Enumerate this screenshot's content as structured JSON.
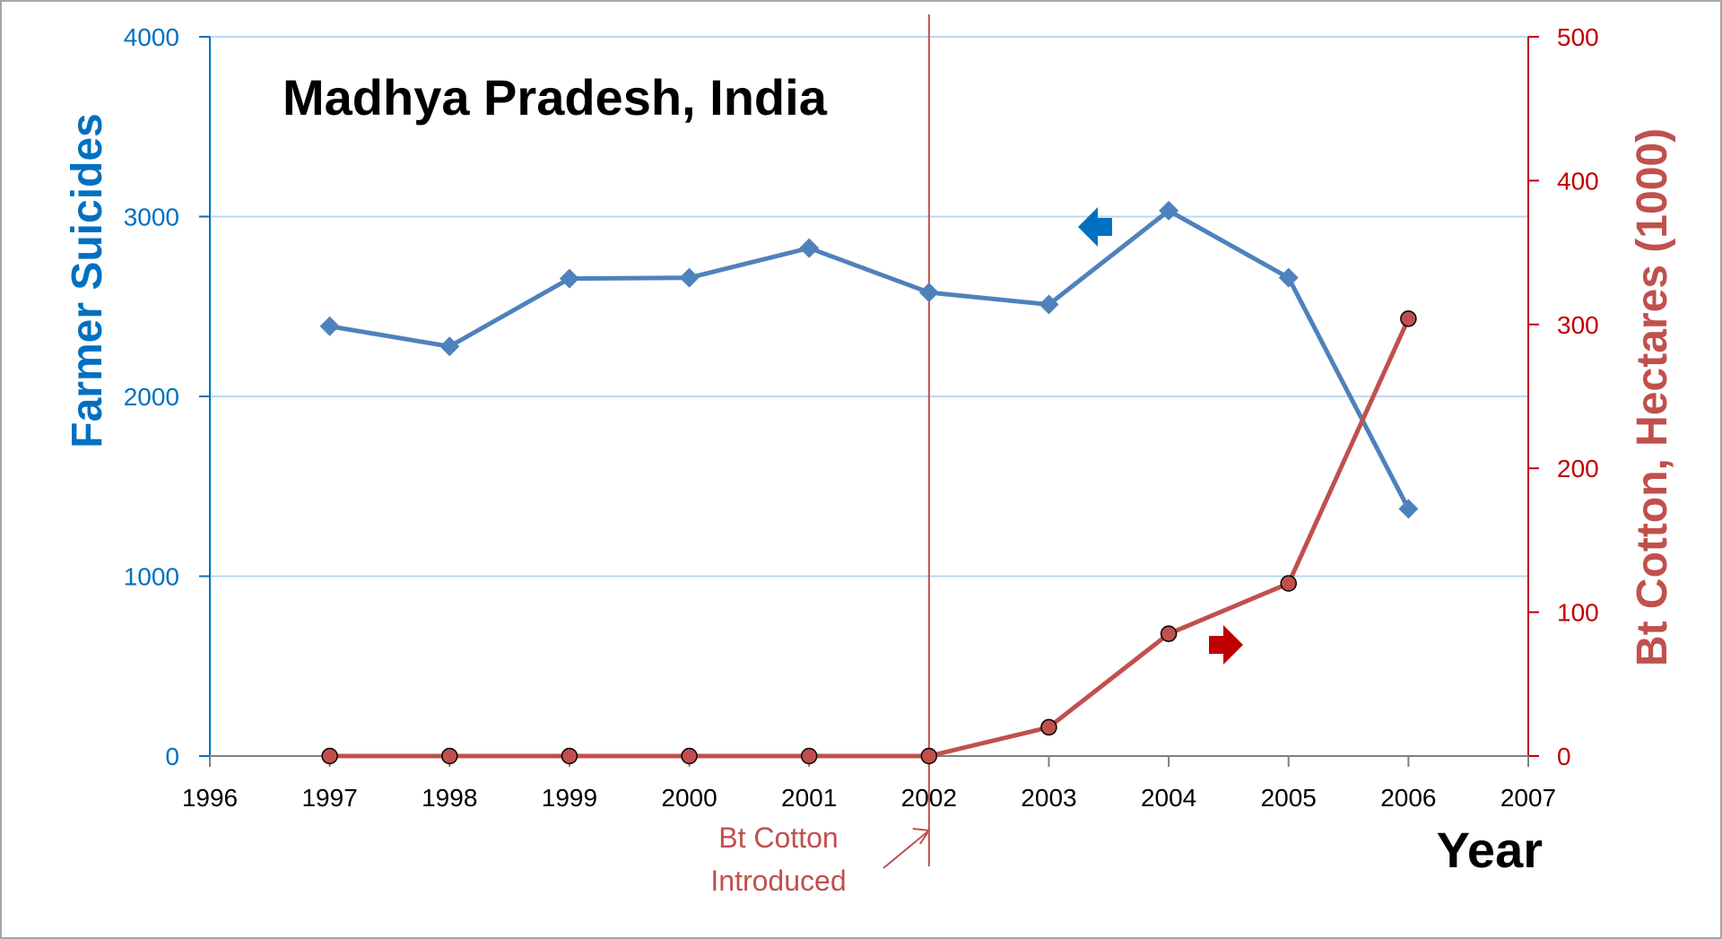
{
  "chart_data": {
    "type": "line",
    "title": "Madhya Pradesh, India",
    "xlabel": "Year",
    "ylabel_left": "Farmer Suicides",
    "ylabel_right": "Bt Cotton, Hectares (1000)",
    "xlim": [
      1996,
      2007
    ],
    "x_ticks": [
      "1996",
      "1997",
      "1998",
      "1999",
      "2000",
      "2001",
      "2002",
      "2003",
      "2004",
      "2005",
      "2006",
      "2007"
    ],
    "ylim_left": [
      0,
      4000
    ],
    "y_ticks_left": [
      "0",
      "1000",
      "2000",
      "3000",
      "4000"
    ],
    "ylim_right": [
      0,
      500
    ],
    "y_ticks_right": [
      "0",
      "100",
      "200",
      "300",
      "400",
      "500"
    ],
    "grid": "horizontal",
    "series": [
      {
        "axis": "left",
        "color": "#4f81bd",
        "marker": "diamond",
        "x": [
          1997,
          1998,
          1999,
          2000,
          2001,
          2002,
          2003,
          2004,
          2005,
          2006
        ],
        "values": [
          2390,
          2278,
          2655,
          2660,
          2825,
          2578,
          2511,
          3033,
          2660,
          1375
        ]
      },
      {
        "axis": "right",
        "color": "#c0504d",
        "marker": "circle",
        "x": [
          1997,
          1998,
          1999,
          2000,
          2001,
          2002,
          2003,
          2004,
          2005,
          2006
        ],
        "values": [
          0,
          0,
          0,
          0,
          0,
          0,
          20,
          85,
          120,
          304
        ]
      }
    ],
    "annotations": [
      {
        "kind": "vertical-line",
        "x": 2002,
        "color": "#c0504d"
      },
      {
        "kind": "text",
        "lines": [
          "Bt Cotton",
          "Introduced"
        ],
        "color": "#c0504d",
        "points_to_x": 2002
      },
      {
        "kind": "arrow",
        "direction": "left",
        "points_to": "left axis",
        "color": "#0070c0"
      },
      {
        "kind": "arrow",
        "direction": "right",
        "points_to": "right axis",
        "color": "#c00000"
      }
    ],
    "colors": {
      "left_axis": "#0070c0",
      "right_axis": "#c00000",
      "grid": "#bdd7ee",
      "axis_line": "#808080"
    }
  }
}
